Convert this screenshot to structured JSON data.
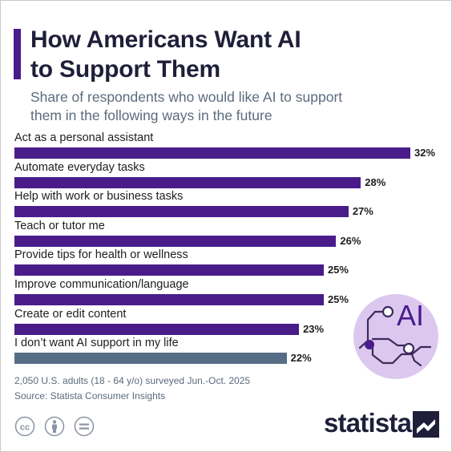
{
  "header": {
    "title_line1": "How Americans Want AI",
    "title_line2": "to Support Them",
    "subtitle_line1": "Share of respondents who would like AI to support",
    "subtitle_line2": "them in the following ways in the future"
  },
  "chart_data": {
    "type": "bar",
    "orientation": "horizontal",
    "title": "How Americans Want AI to Support Them",
    "subtitle": "Share of respondents who would like AI to support them in the following ways in the future",
    "categories": [
      "Act as a personal assistant",
      "Automate everyday tasks",
      "Help with work or business tasks",
      "Teach or tutor me",
      "Provide tips for health or wellness",
      "Improve communication/language",
      "Create or edit content",
      "I don’t want AI support in my life"
    ],
    "values": [
      32,
      28,
      27,
      26,
      25,
      25,
      23,
      22
    ],
    "value_labels": [
      "32%",
      "28%",
      "27%",
      "26%",
      "25%",
      "25%",
      "23%",
      "22%"
    ],
    "unit": "%",
    "bar_colors": [
      "#4a1c8a",
      "#4a1c8a",
      "#4a1c8a",
      "#4a1c8a",
      "#4a1c8a",
      "#4a1c8a",
      "#4a1c8a",
      "#566d85"
    ],
    "grid": false,
    "legend": "none"
  },
  "illustration": {
    "text": "AI",
    "icon": "ai-chip-icon"
  },
  "footer": {
    "note": "2,050 U.S. adults (18 - 64 y/o) surveyed Jun.-Oct. 2025",
    "source": "Source: Statista Consumer Insights",
    "license_icons": [
      "creative-commons-icon",
      "attribution-icon",
      "no-derivatives-icon"
    ]
  },
  "brand": {
    "name": "statista",
    "logo_icon": "statista-logo-icon"
  },
  "colors": {
    "accent": "#4a1c8a",
    "negative_bar": "#566d85",
    "title": "#1f1f3a",
    "muted": "#5b6b7e",
    "illustration_bg": "#dcc8ef"
  }
}
